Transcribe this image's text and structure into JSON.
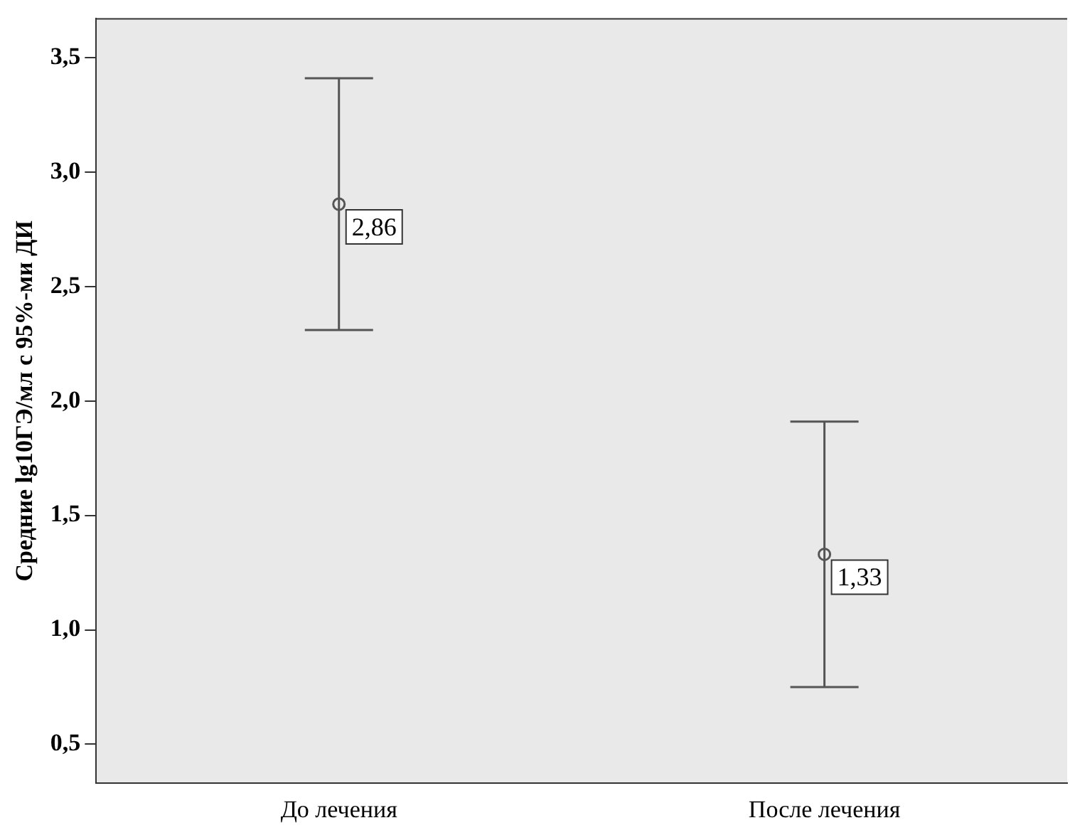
{
  "chart_data": {
    "type": "scatter",
    "ylabel": "Средние lg10ГЭ/мл с 95%-ми ДИ",
    "categories": [
      "До лечения",
      "После лечения"
    ],
    "values": [
      2.86,
      1.33
    ],
    "errors": [
      0.55,
      0.58
    ],
    "value_labels": [
      "2,86",
      "1,33"
    ],
    "color": "#555555",
    "marker": "circle",
    "ylim": [
      0.33,
      3.67
    ],
    "yticks": [
      {
        "value": 0.5,
        "label": "0,5"
      },
      {
        "value": 1.0,
        "label": "1,0"
      },
      {
        "value": 1.5,
        "label": "1,5"
      },
      {
        "value": 2.0,
        "label": "2,0"
      },
      {
        "value": 2.5,
        "label": "2,5"
      },
      {
        "value": 3.0,
        "label": "3,0"
      },
      {
        "value": 3.5,
        "label": "3,5"
      }
    ],
    "grid": false,
    "legend": false
  }
}
